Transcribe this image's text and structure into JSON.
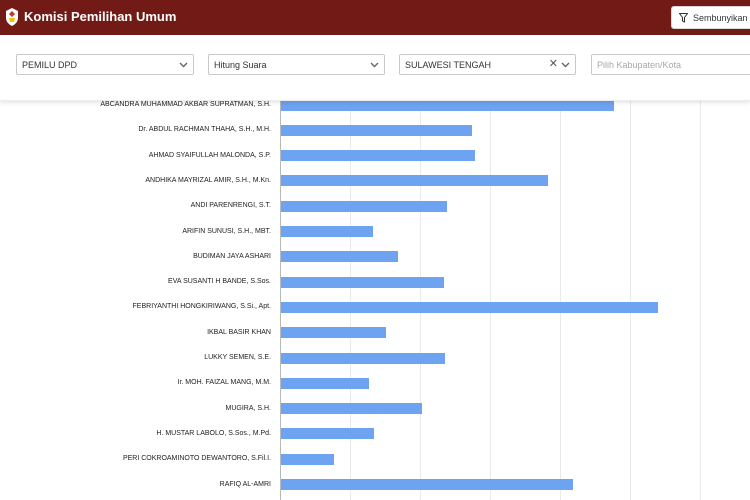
{
  "app": {
    "title": "Komisi Pemilihan Umum",
    "hide_button_label": "Sembunyikan"
  },
  "filters": {
    "election": "PEMILU DPD",
    "view": "Hitung Suara",
    "province": "SULAWESI TENGAH",
    "regency_placeholder": "Pilih Kabupaten/Kota"
  },
  "colors": {
    "header": "#721b16",
    "bar": "#6ea3f2"
  },
  "chart_data": {
    "type": "bar",
    "orientation": "horizontal",
    "grid": true,
    "categories": [
      "ABCANDRA MUHAMMAD AKBAR SUPRATMAN, S.H.",
      "Dr. ABDUL RACHMAN THAHA, S.H., M.H.",
      "AHMAD SYAIFULLAH MALONDA, S.P.",
      "ANDHIKA MAYRIZAL AMIR, S.H., M.Kn.",
      "ANDI PARENRENGI, S.T.",
      "ARIFIN SUNUSI, S.H., MBT.",
      "BUDIMAN JAYA ASHARI",
      "EVA SUSANTI H BANDE, S.Sos.",
      "FEBRIYANTHI HONGKIRIWANG, S.Si., Apt.",
      "IKBAL BASIR KHAN",
      "LUKKY SEMEN, S.E.",
      "Ir. MOH. FAIZAL MANG, M.M.",
      "MUGIRA, S.H.",
      "H. MUSTAR LABOLO, S.Sos., M.Pd.",
      "PERI COKROAMINOTO DEWANTORO, S.Fil.I.",
      "RAFIQ AL-AMRI"
    ],
    "values": [
      333,
      191,
      194,
      267,
      166,
      92,
      117,
      163,
      377,
      105,
      164,
      88,
      141,
      93,
      53,
      292
    ]
  }
}
